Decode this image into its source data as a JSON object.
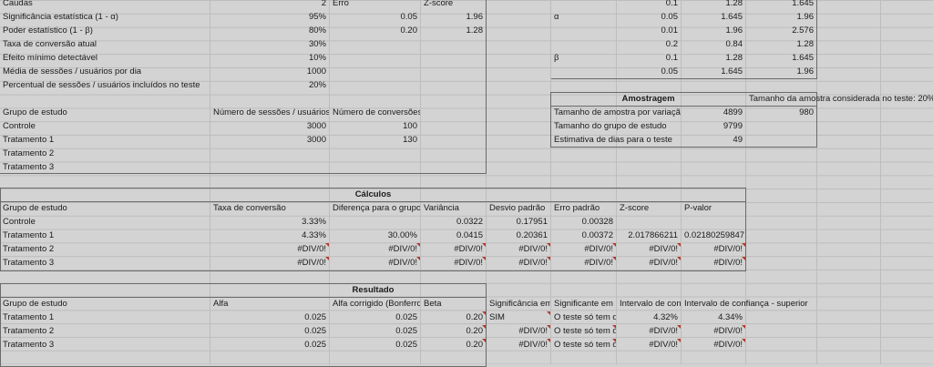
{
  "params": {
    "caudas": {
      "label": "Caudas",
      "value": "2"
    },
    "signif": {
      "label": "Significância estatística (1 - α)",
      "value": "95%"
    },
    "poder": {
      "label": "Poder estatístico (1 - β)",
      "value": "80%"
    },
    "taxa": {
      "label": "Taxa de conversão atual",
      "value": "30%"
    },
    "efeito": {
      "label": "Efeito mínimo detectável",
      "value": "10%"
    },
    "media": {
      "label": "Média de sessões / usuários por dia",
      "value": "1000"
    },
    "percentual": {
      "label": "Percentual de sessões / usuários incluídos no teste",
      "value": "20%"
    },
    "erro_header": "Erro",
    "zscore_header": "Z-score",
    "erro_alpha": "0.05",
    "z_alpha": "1.96",
    "erro_beta": "0.20",
    "z_beta": "1.28"
  },
  "groups": {
    "header": {
      "name": "Grupo de estudo",
      "sessions": "Número de sessões / usuários",
      "conversions": "Número de conversões"
    },
    "rows": [
      {
        "name": "Controle",
        "sessions": "3000",
        "conversions": "100"
      },
      {
        "name": "Tratamento 1",
        "sessions": "3000",
        "conversions": "130"
      },
      {
        "name": "Tratamento 2",
        "sessions": "",
        "conversions": ""
      },
      {
        "name": "Tratamento 3",
        "sessions": "",
        "conversions": ""
      }
    ]
  },
  "ztable": {
    "alpha_label": "α",
    "beta_label": "β",
    "rows": [
      [
        "0.1",
        "1.28",
        "1.645"
      ],
      [
        "0.05",
        "1.645",
        "1.96"
      ],
      [
        "0.01",
        "1.96",
        "2.576"
      ],
      [
        "0.2",
        "0.84",
        "1.28"
      ],
      [
        "0.1",
        "1.28",
        "1.645"
      ],
      [
        "0.05",
        "1.645",
        "1.96"
      ]
    ]
  },
  "amostragem": {
    "title": "Amostragem",
    "note": "Tamanho da amostra considerada no teste: 20%",
    "rows": [
      {
        "label": "Tamanho de amostra por variação",
        "value": "4899",
        "extra": "980"
      },
      {
        "label": "Tamanho do grupo de estudo",
        "value": "9799",
        "extra": ""
      },
      {
        "label": "Estimativa de dias para o teste",
        "value": "49",
        "extra": ""
      }
    ]
  },
  "calculos": {
    "title": "Cálculos",
    "headers": [
      "Grupo de estudo",
      "Taxa de conversão",
      "Diferença para o grupo",
      "Variância",
      "Desvio padrão",
      "Erro padrão",
      "Z-score",
      "P-valor"
    ],
    "rows": [
      [
        "Controle",
        "3.33%",
        "",
        "0.0322",
        "0.17951",
        "0.00328",
        "",
        ""
      ],
      [
        "Tratamento 1",
        "4.33%",
        "30.00%",
        "0.0415",
        "0.20361",
        "0.00372",
        "2.017866211",
        "0.02180259847"
      ],
      [
        "Tratamento 2",
        "#DIV/0!",
        "#DIV/0!",
        "#DIV/0!",
        "#DIV/0!",
        "#DIV/0!",
        "#DIV/0!",
        "#DIV/0!"
      ],
      [
        "Tratamento 3",
        "#DIV/0!",
        "#DIV/0!",
        "#DIV/0!",
        "#DIV/0!",
        "#DIV/0!",
        "#DIV/0!",
        "#DIV/0!"
      ]
    ]
  },
  "resultado": {
    "title": "Resultado",
    "headers": [
      "Grupo de estudo",
      "Alfa",
      "Alfa corrigido (Bonferror",
      "Beta",
      "Significância em",
      "Significante em E",
      "Intervalo de confi",
      "Intervalo de confiança - superior"
    ],
    "rows": [
      [
        "Tratamento 1",
        "0.025",
        "0.025",
        "0.20",
        "SIM",
        "O teste só tem du",
        "4.32%",
        "4.34%"
      ],
      [
        "Tratamento 2",
        "0.025",
        "0.025",
        "0.20",
        "#DIV/0!",
        "O teste só tem du",
        "#DIV/0!",
        "#DIV/0!"
      ],
      [
        "Tratamento 3",
        "0.025",
        "0.025",
        "0.20",
        "#DIV/0!",
        "O teste só tem du",
        "#DIV/0!",
        "#DIV/0!"
      ]
    ]
  }
}
